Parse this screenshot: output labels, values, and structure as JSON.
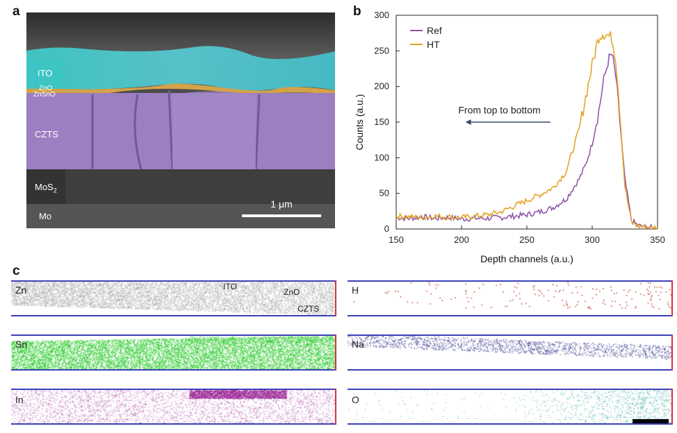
{
  "panel_labels": {
    "a": "a",
    "b": "b",
    "c": "c"
  },
  "panel_a": {
    "layers": {
      "ito": "ITO",
      "zno": "ZnO",
      "znsno": "ZnSnO",
      "czts": "CZTS",
      "mos2_base": "MoS",
      "mos2_sub": "2",
      "mo": "Mo"
    },
    "scale_bar": "1 μm",
    "colors": {
      "ito": "#3cc6c4",
      "znsno": "#d3a24a",
      "czts": "#9b7fc0"
    }
  },
  "chart_data": {
    "type": "line",
    "xlabel": "Depth channels (a.u.)",
    "ylabel": "Counts (a.u.)",
    "xlim": [
      150,
      350
    ],
    "ylim": [
      0,
      300
    ],
    "xticks": [
      150,
      200,
      250,
      300,
      350
    ],
    "yticks": [
      0,
      50,
      100,
      150,
      200,
      250,
      300
    ],
    "grid": false,
    "legend_position": "top-left",
    "annotation": "From top to bottom",
    "x": [
      150,
      160,
      170,
      180,
      190,
      200,
      210,
      220,
      230,
      240,
      250,
      260,
      270,
      280,
      285,
      290,
      295,
      300,
      305,
      308,
      312,
      315,
      318,
      320,
      325,
      330,
      335,
      340,
      345,
      350
    ],
    "series": [
      {
        "name": "Ref",
        "color": "#8a4fa8",
        "values": [
          16,
          15,
          17,
          15,
          16,
          14,
          15,
          15,
          16,
          18,
          20,
          24,
          30,
          42,
          56,
          70,
          90,
          120,
          165,
          200,
          235,
          245,
          215,
          175,
          70,
          12,
          5,
          3,
          2,
          2
        ]
      },
      {
        "name": "HT",
        "color": "#e3a01e",
        "values": [
          18,
          17,
          16,
          18,
          17,
          16,
          18,
          20,
          24,
          32,
          40,
          48,
          58,
          80,
          110,
          140,
          185,
          230,
          270,
          275,
          272,
          268,
          240,
          195,
          60,
          10,
          4,
          3,
          2,
          2
        ]
      }
    ]
  },
  "panel_c": {
    "elements_left": [
      "Zn",
      "Sn",
      "In"
    ],
    "elements_right": [
      "H",
      "Na",
      "O"
    ],
    "inset_labels": {
      "ito": "ITO",
      "zno": "ZnO",
      "czts": "CZTS"
    },
    "colors": {
      "Zn": "#8c8c8c",
      "Sn": "#1fc81f",
      "In": "#a0309a",
      "H": "#c0392b",
      "Na": "#2e2e8a",
      "O": "#3aa9a0"
    }
  }
}
